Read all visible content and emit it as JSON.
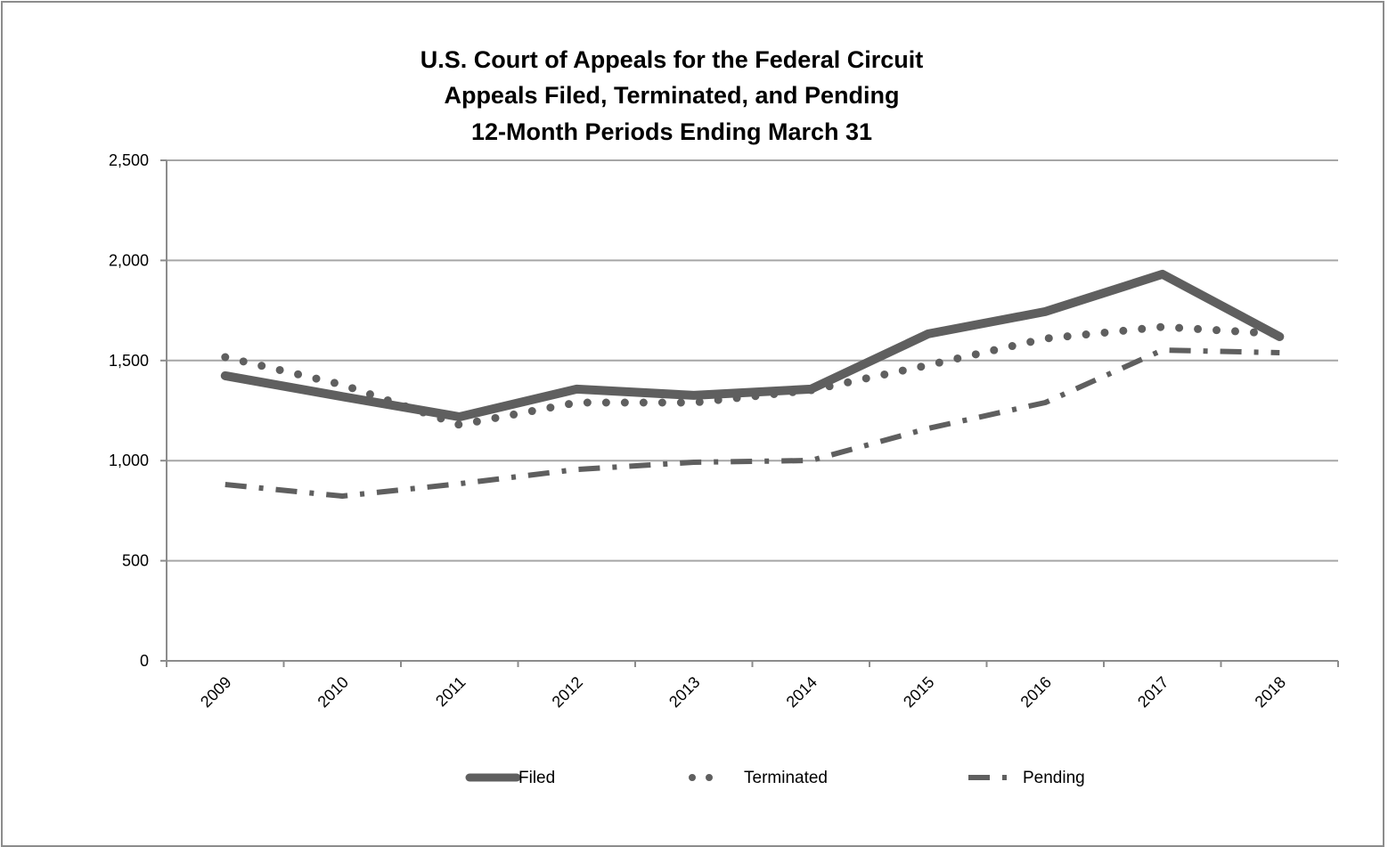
{
  "chart_data": {
    "type": "line",
    "title": [
      "U.S. Court of Appeals for the Federal Circuit",
      "Appeals Filed, Terminated, and Pending",
      "12-Month Periods Ending March 31"
    ],
    "xlabel": "",
    "ylabel": "",
    "categories": [
      "2009",
      "2010",
      "2011",
      "2012",
      "2013",
      "2014",
      "2015",
      "2016",
      "2017",
      "2018"
    ],
    "ylim": [
      0,
      2500
    ],
    "yticks": [
      0,
      500,
      1000,
      1500,
      2000,
      2500
    ],
    "ytick_labels": [
      "0",
      "500",
      "1,000",
      "1,500",
      "2,000",
      "2,500"
    ],
    "grid": true,
    "legend_position": "bottom",
    "series": [
      {
        "name": "Filed",
        "style": "solid-thick",
        "color": "#5f5f5f",
        "values": [
          1424,
          1320,
          1219,
          1357,
          1326,
          1357,
          1633,
          1744,
          1931,
          1619
        ]
      },
      {
        "name": "Terminated",
        "style": "dotted",
        "color": "#5f5f5f",
        "values": [
          1517,
          1379,
          1179,
          1290,
          1290,
          1352,
          1477,
          1610,
          1668,
          1633
        ]
      },
      {
        "name": "Pending",
        "style": "dash-dot",
        "color": "#5f5f5f",
        "values": [
          881,
          823,
          885,
          956,
          992,
          1001,
          1161,
          1290,
          1552,
          1539
        ]
      }
    ]
  },
  "colors": {
    "gridline": "#a6a6a6",
    "axis": "#8c8c8c",
    "series": "#5f5f5f",
    "text": "#000000"
  }
}
